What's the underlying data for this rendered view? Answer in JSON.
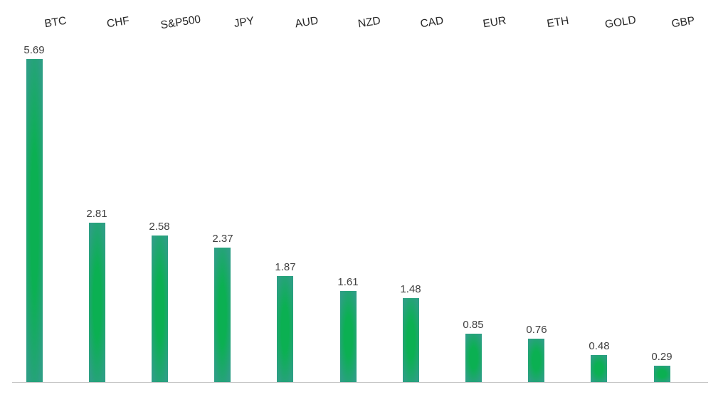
{
  "chart_data": {
    "type": "bar",
    "categories": [
      "BTC",
      "CHF",
      "S&P500",
      "JPY",
      "AUD",
      "NZD",
      "CAD",
      "EUR",
      "ETH",
      "GOLD",
      "GBP"
    ],
    "values": [
      5.69,
      2.81,
      2.58,
      2.37,
      1.87,
      1.61,
      1.48,
      0.85,
      0.76,
      0.48,
      0.29
    ],
    "value_labels": [
      "5.69",
      "2.81",
      "2.58",
      "2.37",
      "1.87",
      "1.61",
      "1.48",
      "0.85",
      "0.76",
      "0.48",
      "0.29"
    ],
    "title": "",
    "xlabel": "",
    "ylabel": "",
    "ylim": [
      0,
      5.69
    ],
    "grid": false,
    "legend_position": "none",
    "category_labels_position": "top",
    "category_labels_rotated": true,
    "colors": {
      "bar_center": "#0bb052",
      "bar_edge": "#2d9f84",
      "value_label": "#3f3f3f",
      "category_label": "#262626",
      "axis_line": "#c6c6c6",
      "background": "#ffffff"
    }
  }
}
